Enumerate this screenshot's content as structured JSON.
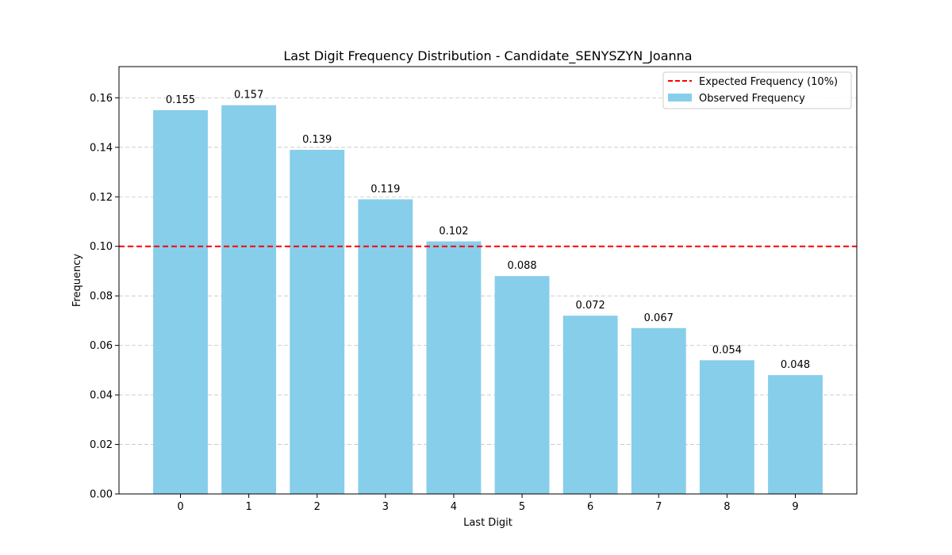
{
  "chart_data": {
    "type": "bar",
    "title": "Last Digit Frequency Distribution - Candidate_SENYSZYN_Joanna",
    "xlabel": "Last Digit",
    "ylabel": "Frequency",
    "categories": [
      "0",
      "1",
      "2",
      "3",
      "4",
      "5",
      "6",
      "7",
      "8",
      "9"
    ],
    "values": [
      0.155,
      0.157,
      0.139,
      0.119,
      0.102,
      0.088,
      0.072,
      0.067,
      0.054,
      0.048
    ],
    "value_labels": [
      "0.155",
      "0.157",
      "0.139",
      "0.119",
      "0.102",
      "0.088",
      "0.072",
      "0.067",
      "0.054",
      "0.048"
    ],
    "ylim": [
      0,
      0.1726
    ],
    "yticks": [
      0.0,
      0.02,
      0.04,
      0.06,
      0.08,
      0.1,
      0.12,
      0.14,
      0.16
    ],
    "ytick_labels": [
      "0.00",
      "0.02",
      "0.04",
      "0.06",
      "0.08",
      "0.10",
      "0.12",
      "0.14",
      "0.16"
    ],
    "reference_line": {
      "value": 0.1,
      "label": "Expected Frequency (10%)",
      "color": "#ff0000"
    },
    "bar_color": "#87ceeb",
    "grid": "y-dashed",
    "legend": {
      "position": "top-right",
      "entries": [
        "Expected Frequency (10%)",
        "Observed Frequency"
      ]
    }
  }
}
